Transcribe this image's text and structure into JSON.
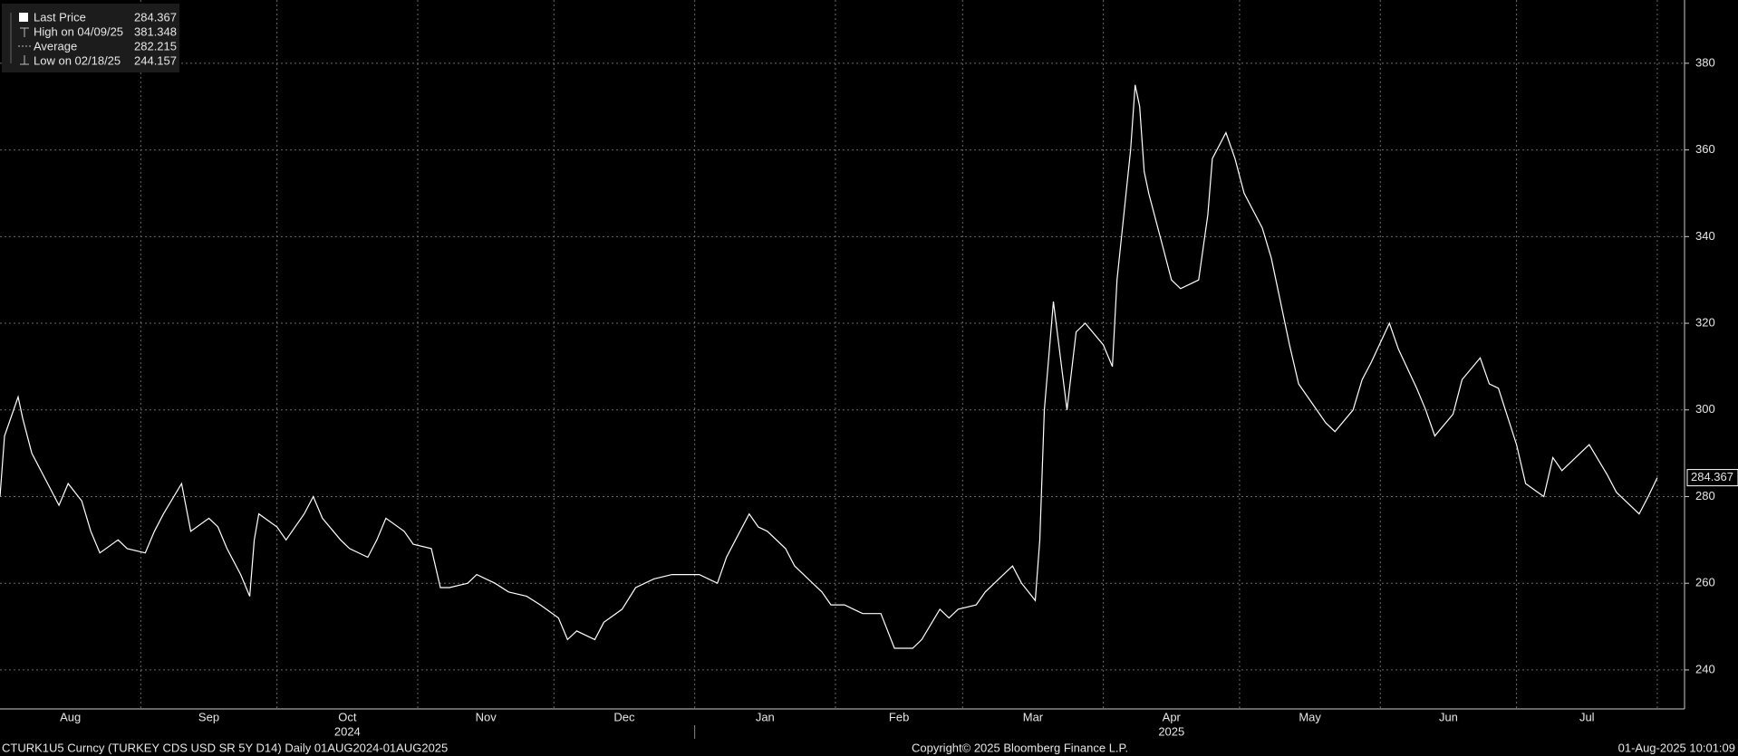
{
  "chart_data": {
    "type": "line",
    "legend": [
      {
        "label": "Last Price",
        "value": 284.367
      },
      {
        "label": "High on 04/09/25",
        "value": 381.348
      },
      {
        "label": "Average",
        "value": 282.215
      },
      {
        "label": "Low on 02/18/25",
        "value": 244.157
      }
    ],
    "footer_left": "CTURK1U5 Curncy (TURKEY CDS USD SR 5Y D14)  Daily 01AUG2024-01AUG2025",
    "footer_center": "Copyright© 2025 Bloomberg Finance L.P.",
    "footer_right": "01-Aug-2025 10:01:09",
    "grid": true,
    "color": "#ffffff",
    "xlim": [
      "2024-08-01",
      "2025-08-07"
    ],
    "ylim": [
      231,
      394.6
    ],
    "yticks": [
      240,
      260,
      280,
      300,
      320,
      340,
      360,
      380
    ],
    "xticks": [
      {
        "value": "2024-08-01",
        "label": "Aug"
      },
      {
        "value": "2024-09-01",
        "label": "Sep"
      },
      {
        "value": "2024-10-01",
        "label": "Oct",
        "year": "2024"
      },
      {
        "value": "2024-11-01",
        "label": "Nov"
      },
      {
        "value": "2024-12-01",
        "label": "Dec"
      },
      {
        "value": "2025-01-01",
        "label": "Jan"
      },
      {
        "value": "2025-02-01",
        "label": "Feb"
      },
      {
        "value": "2025-03-01",
        "label": "Mar"
      },
      {
        "value": "2025-04-01",
        "label": "Apr",
        "year": "2025"
      },
      {
        "value": "2025-05-01",
        "label": "May"
      },
      {
        "value": "2025-06-01",
        "label": "Jun"
      },
      {
        "value": "2025-07-01",
        "label": "Jul"
      }
    ],
    "series": [
      {
        "name": "Last Price",
        "x": [
          "2024-08-01",
          "2024-08-02",
          "2024-08-05",
          "2024-08-06",
          "2024-08-08",
          "2024-08-12",
          "2024-08-14",
          "2024-08-16",
          "2024-08-19",
          "2024-08-21",
          "2024-08-23",
          "2024-08-27",
          "2024-08-29",
          "2024-09-02",
          "2024-09-04",
          "2024-09-06",
          "2024-09-10",
          "2024-09-12",
          "2024-09-16",
          "2024-09-18",
          "2024-09-20",
          "2024-09-23",
          "2024-09-25",
          "2024-09-26",
          "2024-09-27",
          "2024-10-01",
          "2024-10-03",
          "2024-10-07",
          "2024-10-09",
          "2024-10-11",
          "2024-10-15",
          "2024-10-17",
          "2024-10-21",
          "2024-10-23",
          "2024-10-25",
          "2024-10-29",
          "2024-10-31",
          "2024-11-04",
          "2024-11-06",
          "2024-11-08",
          "2024-11-12",
          "2024-11-14",
          "2024-11-18",
          "2024-11-21",
          "2024-11-25",
          "2024-11-28",
          "2024-12-02",
          "2024-12-04",
          "2024-12-06",
          "2024-12-10",
          "2024-12-12",
          "2024-12-16",
          "2024-12-19",
          "2024-12-23",
          "2024-12-27",
          "2025-01-02",
          "2025-01-06",
          "2025-01-08",
          "2025-01-10",
          "2025-01-13",
          "2025-01-15",
          "2025-01-17",
          "2025-01-21",
          "2025-01-23",
          "2025-01-27",
          "2025-01-29",
          "2025-01-31",
          "2025-02-03",
          "2025-02-05",
          "2025-02-07",
          "2025-02-11",
          "2025-02-14",
          "2025-02-18",
          "2025-02-20",
          "2025-02-24",
          "2025-02-26",
          "2025-02-28",
          "2025-03-04",
          "2025-03-06",
          "2025-03-10",
          "2025-03-12",
          "2025-03-14",
          "2025-03-17",
          "2025-03-18",
          "2025-03-19",
          "2025-03-21",
          "2025-03-24",
          "2025-03-26",
          "2025-03-28",
          "2025-04-01",
          "2025-04-03",
          "2025-04-04",
          "2025-04-07",
          "2025-04-08",
          "2025-04-09",
          "2025-04-10",
          "2025-04-11",
          "2025-04-14",
          "2025-04-16",
          "2025-04-18",
          "2025-04-22",
          "2025-04-24",
          "2025-04-25",
          "2025-04-28",
          "2025-04-30",
          "2025-05-02",
          "2025-05-06",
          "2025-05-08",
          "2025-05-12",
          "2025-05-14",
          "2025-05-16",
          "2025-05-20",
          "2025-05-22",
          "2025-05-26",
          "2025-05-28",
          "2025-05-30",
          "2025-06-03",
          "2025-06-05",
          "2025-06-09",
          "2025-06-11",
          "2025-06-13",
          "2025-06-17",
          "2025-06-19",
          "2025-06-23",
          "2025-06-25",
          "2025-06-27",
          "2025-07-01",
          "2025-07-03",
          "2025-07-07",
          "2025-07-09",
          "2025-07-11",
          "2025-07-15",
          "2025-07-17",
          "2025-07-21",
          "2025-07-23",
          "2025-07-25",
          "2025-07-28",
          "2025-07-30",
          "2025-08-01"
        ],
        "values": [
          280,
          294,
          303,
          298,
          290,
          282,
          278,
          283,
          279,
          272,
          267,
          270,
          268,
          267,
          272,
          276,
          283,
          272,
          275,
          273,
          268,
          262,
          257,
          270,
          276,
          273,
          270,
          276,
          280,
          275,
          270,
          268,
          266,
          270,
          275,
          272,
          269,
          268,
          259,
          259,
          260,
          262,
          260,
          258,
          257,
          255,
          252,
          247,
          249,
          247,
          251,
          254,
          259,
          261,
          262,
          262,
          260,
          266,
          270,
          276,
          273,
          272,
          268,
          264,
          260,
          258,
          255,
          255,
          254,
          253,
          253,
          245,
          245,
          247,
          254,
          252,
          254,
          255,
          258,
          262,
          264,
          260,
          256,
          270,
          300,
          325,
          300,
          318,
          320,
          315,
          310,
          330,
          360,
          375,
          370,
          355,
          350,
          338,
          330,
          328,
          330,
          345,
          358,
          364,
          358,
          350,
          342,
          335,
          315,
          306,
          303,
          297,
          295,
          300,
          307,
          311,
          320,
          314,
          305,
          300,
          294,
          299,
          307,
          312,
          306,
          305,
          292,
          283,
          280,
          289,
          286,
          290,
          292,
          285,
          281,
          279,
          276,
          280,
          284.367
        ]
      }
    ]
  }
}
